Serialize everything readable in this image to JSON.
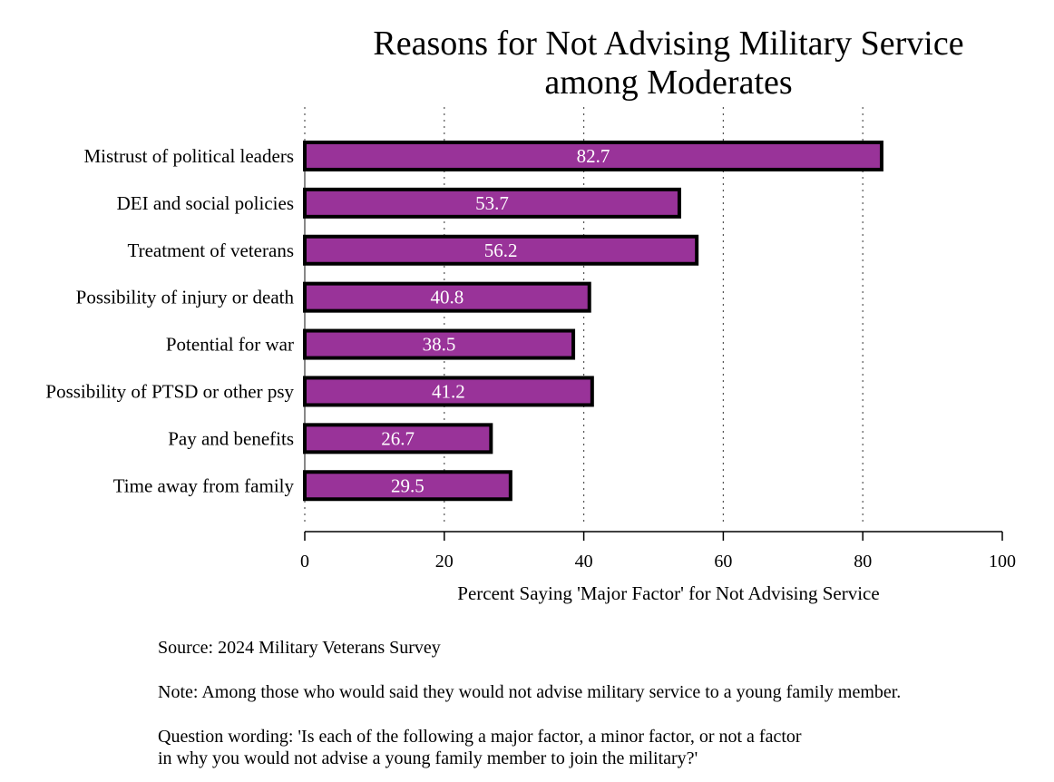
{
  "chart_data": {
    "type": "bar",
    "orientation": "horizontal",
    "title_line1": "Reasons for Not Advising Military Service",
    "title_line2": "among Moderates",
    "categories": [
      "Mistrust of political leaders",
      "DEI and social policies",
      "Treatment of veterans",
      "Possibility of injury or death",
      "Potential for war",
      "Possibility of PTSD or other psy",
      "Pay and benefits",
      "Time away from family"
    ],
    "values": [
      82.7,
      53.7,
      56.2,
      40.8,
      38.5,
      41.2,
      26.7,
      29.5
    ],
    "value_labels": [
      "82.7",
      "53.7",
      "56.2",
      "40.8",
      "38.5",
      "41.2",
      "26.7",
      "29.5"
    ],
    "xlabel": "Percent Saying 'Major Factor' for Not Advising Service",
    "ylabel": "",
    "xlim": [
      0,
      100
    ],
    "xticks": [
      0,
      20,
      40,
      60,
      80,
      100
    ],
    "xtick_labels": [
      "0",
      "20",
      "40",
      "60",
      "80",
      "100"
    ],
    "grid": "vertical dotted",
    "bar_color": "#993399",
    "notes": {
      "source": "Source: 2024 Military Veterans Survey",
      "note": "Note: Among those who would said they would not advise military service to a young family member.",
      "question_line1": "Question wording: 'Is each of the following a major factor, a minor factor, or not a factor",
      "question_line2": "in why you would not advise a young family member to join the military?'"
    }
  }
}
